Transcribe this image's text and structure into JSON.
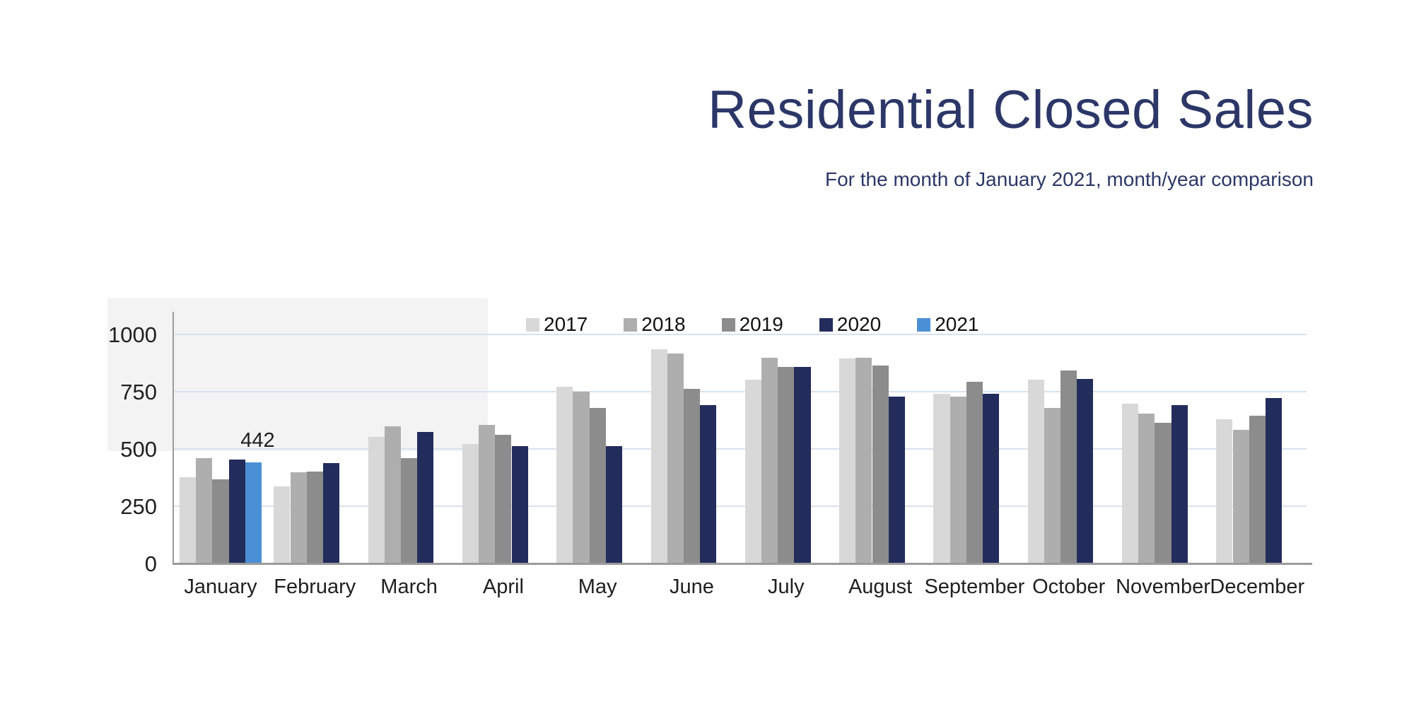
{
  "title": "Residential Closed Sales",
  "subtitle": "For the month of January 2021, month/year comparison",
  "colors": {
    "title_navy": "#2c3768",
    "gridline": "#d9e2ee",
    "axis": "#9b9b9b",
    "text": "#1f1f1f"
  },
  "chart_data": {
    "type": "bar",
    "title": "Residential Closed Sales",
    "subtitle": "For the month of January 2021, month/year comparison",
    "categories": [
      "January",
      "February",
      "March",
      "April",
      "May",
      "June",
      "July",
      "August",
      "September",
      "October",
      "November",
      "December"
    ],
    "series": [
      {
        "name": "2017",
        "color": "#d8d8d8",
        "values": [
          375,
          335,
          552,
          520,
          770,
          935,
          803,
          895,
          739,
          803,
          698,
          628
        ]
      },
      {
        "name": "2018",
        "color": "#aeaeae",
        "values": [
          460,
          398,
          597,
          605,
          748,
          915,
          897,
          897,
          727,
          678,
          655,
          583
        ]
      },
      {
        "name": "2019",
        "color": "#8c8c8c",
        "values": [
          368,
          400,
          460,
          562,
          678,
          762,
          857,
          864,
          792,
          843,
          614,
          646
        ]
      },
      {
        "name": "2020",
        "color": "#222d5c",
        "values": [
          452,
          438,
          573,
          512,
          512,
          690,
          856,
          728,
          741,
          805,
          692,
          722
        ]
      },
      {
        "name": "2021",
        "color": "#4b8fd5",
        "values": [
          442,
          null,
          null,
          null,
          null,
          null,
          null,
          null,
          null,
          null,
          null,
          null
        ]
      }
    ],
    "ylabel": "",
    "xlabel": "",
    "ylim": [
      0,
      1100
    ],
    "yticks": [
      0,
      250,
      500,
      750,
      1000
    ],
    "grid": "horizontal",
    "legend_position": "top-center",
    "data_labels": [
      {
        "series": "2021",
        "category": "January",
        "value": 442
      }
    ]
  }
}
